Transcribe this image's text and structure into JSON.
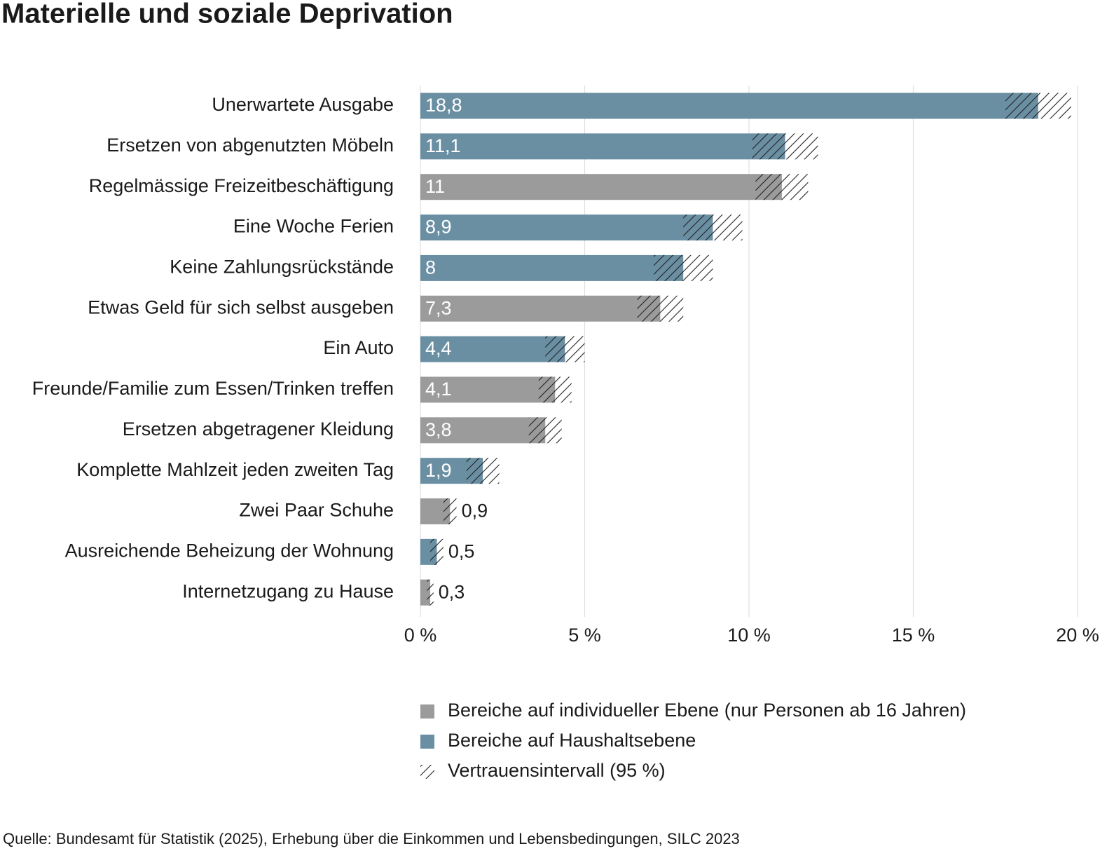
{
  "chart_data": {
    "type": "bar",
    "orientation": "horizontal",
    "title": "Materielle und soziale Deprivation",
    "categories": [
      "Unerwartete Ausgabe",
      "Ersetzen von abgenutzten Möbeln",
      "Regelmässige Freizeitbeschäftigung",
      "Eine Woche Ferien",
      "Keine Zahlungsrückstände",
      "Etwas Geld für sich selbst ausgeben",
      "Ein Auto",
      "Freunde/Familie zum Essen/Trinken treffen",
      "Ersetzen abgetragener Kleidung",
      "Komplette Mahlzeit jeden zweiten Tag",
      "Zwei Paar Schuhe",
      "Ausreichende Beheizung der Wohnung",
      "Internetzugang zu Hause"
    ],
    "series": [
      {
        "name": "Bereiche auf individueller Ebene (nur Personen ab 16 Jahren)",
        "color": "#9b9b9b",
        "values": [
          null,
          null,
          11,
          null,
          null,
          7.3,
          null,
          4.1,
          3.8,
          null,
          0.9,
          null,
          0.3
        ],
        "value_labels": [
          null,
          null,
          "11",
          null,
          null,
          "7,3",
          null,
          "4,1",
          "3,8",
          null,
          "0,9",
          null,
          "0,3"
        ],
        "errors": [
          null,
          null,
          0.8,
          null,
          null,
          0.7,
          null,
          0.5,
          0.5,
          null,
          0.2,
          null,
          0.1
        ]
      },
      {
        "name": "Bereiche auf Haushaltsebene",
        "color": "#6a8fa3",
        "values": [
          18.8,
          11.1,
          null,
          8.9,
          8,
          null,
          4.4,
          null,
          null,
          1.9,
          null,
          0.5,
          null
        ],
        "value_labels": [
          "18,8",
          "11,1",
          null,
          "8,9",
          "8",
          null,
          "4,4",
          null,
          null,
          "1,9",
          null,
          "0,5",
          null
        ],
        "errors": [
          1.0,
          1.0,
          null,
          0.9,
          0.9,
          null,
          0.6,
          null,
          null,
          0.5,
          null,
          0.2,
          null
        ]
      }
    ],
    "ci_label": "Vertrauensintervall (95 %)",
    "xlim": [
      0,
      20
    ],
    "xticks": [
      {
        "value": 0,
        "label": "0 %"
      },
      {
        "value": 5,
        "label": "5 %"
      },
      {
        "value": 10,
        "label": "10 %"
      },
      {
        "value": 15,
        "label": "15 %"
      },
      {
        "value": 20,
        "label": "20 %"
      }
    ],
    "grid": true,
    "source": "Quelle: Bundesamt für Statistik (2025), Erhebung über die Einkommen und Lebensbedingungen, SILC 2023"
  }
}
